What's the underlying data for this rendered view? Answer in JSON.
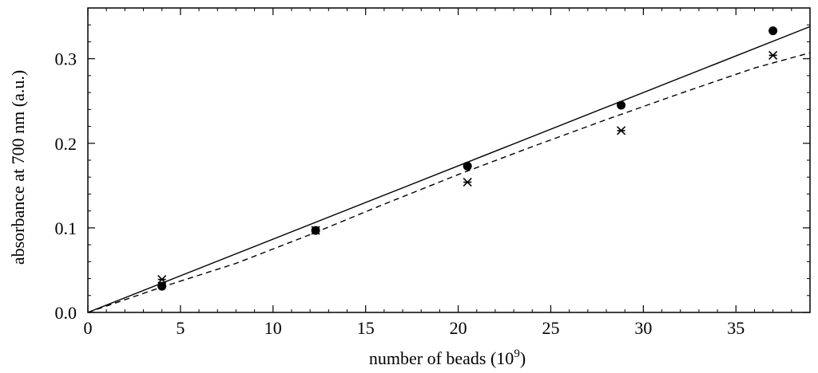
{
  "chart_data": {
    "type": "scatter",
    "title": "",
    "xlabel": "number of beads (10",
    "xlabel_exponent": "9",
    "xlabel_suffix": ")",
    "ylabel": "absorbance at 700 nm (a.u.)",
    "xlim": [
      0,
      39
    ],
    "ylim": [
      0,
      0.36
    ],
    "grid": false,
    "x_ticks": [
      0,
      5,
      10,
      15,
      20,
      25,
      30,
      35
    ],
    "x_tick_labels": [
      "0",
      "5",
      "10",
      "15",
      "20",
      "25",
      "30",
      "35"
    ],
    "y_ticks": [
      0.0,
      0.1,
      0.2,
      0.3
    ],
    "y_tick_labels": [
      "0.0",
      "0.1",
      "0.2",
      "0.3"
    ],
    "series": [
      {
        "marker": "filled-circle",
        "points": [
          {
            "x": 4.0,
            "y": 0.031
          },
          {
            "x": 12.3,
            "y": 0.097
          },
          {
            "x": 20.5,
            "y": 0.173
          },
          {
            "x": 28.8,
            "y": 0.245
          },
          {
            "x": 37.0,
            "y": 0.333
          }
        ]
      },
      {
        "marker": "asterisk",
        "points": [
          {
            "x": 4.0,
            "y": 0.039
          },
          {
            "x": 12.3,
            "y": 0.097
          },
          {
            "x": 20.5,
            "y": 0.154
          },
          {
            "x": 28.8,
            "y": 0.215
          },
          {
            "x": 37.0,
            "y": 0.304
          }
        ]
      }
    ],
    "fits": [
      {
        "style": "solid",
        "points": [
          [
            0,
            0.0
          ],
          [
            39,
            0.338
          ]
        ]
      },
      {
        "style": "dashed",
        "points": [
          [
            0,
            0.0
          ],
          [
            4,
            0.03
          ],
          [
            8,
            0.058
          ],
          [
            12,
            0.092
          ],
          [
            16,
            0.128
          ],
          [
            20,
            0.163
          ],
          [
            24,
            0.196
          ],
          [
            28,
            0.228
          ],
          [
            32,
            0.259
          ],
          [
            36,
            0.289
          ],
          [
            39,
            0.307
          ]
        ]
      }
    ]
  }
}
